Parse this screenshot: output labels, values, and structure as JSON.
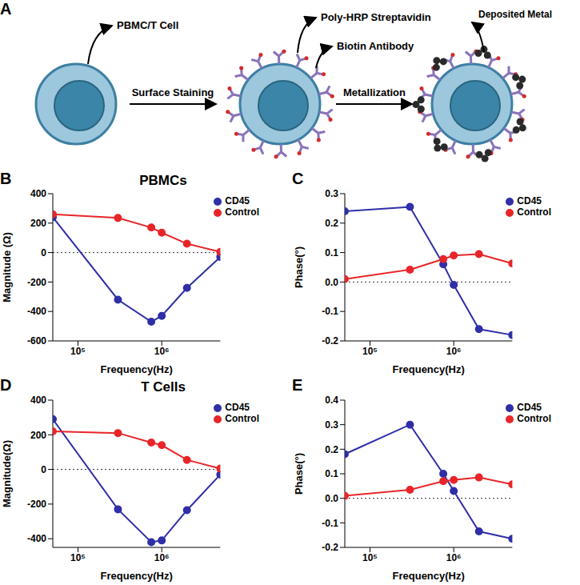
{
  "diagram": {
    "panel": "A",
    "labels": {
      "cell": "PBMC/T Cell",
      "enzyme": "Poly-HRP Streptavidin",
      "antibody": "Biotin Antibody",
      "metal": "Deposited Metal"
    },
    "steps": [
      "Surface Staining",
      "Metallization"
    ]
  },
  "chart_data": [
    {
      "panel": "B",
      "type": "line",
      "title": "PBMCs",
      "x_label": "Frequency(Hz)",
      "y_label": "Magnitude (Ω)",
      "log": "x",
      "grid": false,
      "legend": "upper right",
      "x": [
        50000,
        300000,
        750000,
        1000000,
        2000000,
        5000000
      ],
      "xlim": [
        50000,
        5000000
      ],
      "xticks": [
        {
          "value": 100000,
          "label": "10⁵"
        },
        {
          "value": 1000000,
          "label": "10⁶"
        }
      ],
      "ylim": [
        -600,
        400
      ],
      "yticks": [
        -600,
        -400,
        -200,
        0,
        200,
        400
      ],
      "baseline": 0,
      "series": [
        {
          "name": "CD45",
          "color": "#2f2fa8",
          "marker": "circle",
          "values": [
            240,
            -320,
            -470,
            -430,
            -240,
            -30
          ]
        },
        {
          "name": "Control",
          "color": "#e8262a",
          "marker": "circle",
          "values": [
            260,
            235,
            170,
            135,
            60,
            5
          ]
        }
      ]
    },
    {
      "panel": "C",
      "type": "line",
      "x_label": "Frequency(Hz)",
      "y_label": "Phase(°)",
      "log": "x",
      "grid": false,
      "legend": "upper right",
      "x": [
        50000,
        300000,
        750000,
        1000000,
        2000000,
        5000000
      ],
      "xlim": [
        50000,
        5000000
      ],
      "xticks": [
        {
          "value": 100000,
          "label": "10⁵"
        },
        {
          "value": 1000000,
          "label": "10⁶"
        }
      ],
      "ylim": [
        -0.2,
        0.3
      ],
      "yticks": [
        -0.2,
        -0.1,
        {
          "value": 0,
          "label": "0.0"
        },
        0.1,
        0.2,
        0.3
      ],
      "baseline": 0,
      "series": [
        {
          "name": "CD45",
          "color": "#2f2fa8",
          "marker": "circle",
          "values": [
            0.24,
            0.255,
            0.06,
            -0.01,
            -0.16,
            -0.18
          ]
        },
        {
          "name": "Control",
          "color": "#e8262a",
          "marker": "circle",
          "values": [
            0.01,
            0.042,
            0.078,
            0.09,
            0.095,
            0.063
          ]
        }
      ]
    },
    {
      "panel": "D",
      "type": "line",
      "title": "T Cells",
      "x_label": "Frequency(Hz)",
      "y_label": "Magnitude(Ω)",
      "log": "x",
      "grid": false,
      "legend": "upper right",
      "x": [
        50000,
        300000,
        750000,
        1000000,
        2000000,
        5000000
      ],
      "xlim": [
        50000,
        5000000
      ],
      "xticks": [
        {
          "value": 100000,
          "label": "10⁵"
        },
        {
          "value": 1000000,
          "label": "10⁶"
        }
      ],
      "ylim": [
        -450,
        400
      ],
      "yticks": [
        -400,
        -200,
        0,
        200,
        400
      ],
      "baseline": 0,
      "series": [
        {
          "name": "CD45",
          "color": "#2f2fa8",
          "marker": "circle",
          "values": [
            290,
            -230,
            -420,
            -410,
            -235,
            -30
          ]
        },
        {
          "name": "Control",
          "color": "#e8262a",
          "marker": "circle",
          "values": [
            220,
            210,
            155,
            140,
            55,
            5
          ]
        }
      ]
    },
    {
      "panel": "E",
      "type": "line",
      "x_label": "Frequency(Hz)",
      "y_label": "Phase(°)",
      "log": "x",
      "grid": false,
      "legend": "upper right",
      "x": [
        50000,
        300000,
        750000,
        1000000,
        2000000,
        5000000
      ],
      "xlim": [
        50000,
        5000000
      ],
      "xticks": [
        {
          "value": 100000,
          "label": "10⁵"
        },
        {
          "value": 1000000,
          "label": "10⁶"
        }
      ],
      "ylim": [
        -0.2,
        0.4
      ],
      "yticks": [
        -0.2,
        -0.1,
        {
          "value": 0,
          "label": "0.0"
        },
        0.1,
        0.2,
        0.3,
        0.4
      ],
      "baseline": 0,
      "series": [
        {
          "name": "CD45",
          "color": "#2f2fa8",
          "marker": "circle",
          "values": [
            0.18,
            0.3,
            0.1,
            0.03,
            -0.135,
            -0.165
          ]
        },
        {
          "name": "Control",
          "color": "#e8262a",
          "marker": "circle",
          "values": [
            0.01,
            0.035,
            0.07,
            0.075,
            0.085,
            0.057
          ]
        }
      ]
    }
  ]
}
